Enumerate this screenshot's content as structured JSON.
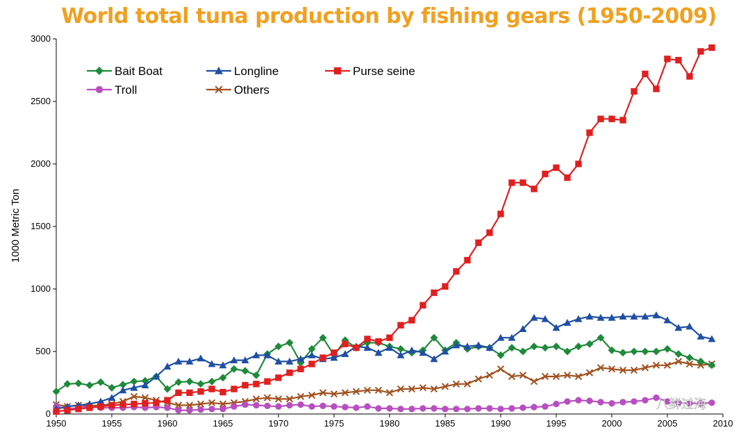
{
  "title": "World total tuna production by fishing gears (1950-2009)",
  "watermark": "八鲜过海",
  "chart_data": {
    "type": "line",
    "title": "World total tuna production by fishing gears (1950-2009)",
    "xlabel": "",
    "ylabel": "1000 Metric Ton",
    "xlim": [
      1950,
      2010
    ],
    "ylim": [
      0,
      3000
    ],
    "xticks": [
      1950,
      1955,
      1960,
      1965,
      1970,
      1975,
      1980,
      1985,
      1990,
      1995,
      2000,
      2005,
      2010
    ],
    "yticks": [
      0,
      500,
      1000,
      1500,
      2000,
      2500,
      3000
    ],
    "legend_position": "top-left",
    "x": [
      1950,
      1951,
      1952,
      1953,
      1954,
      1955,
      1956,
      1957,
      1958,
      1959,
      1960,
      1961,
      1962,
      1963,
      1964,
      1965,
      1966,
      1967,
      1968,
      1969,
      1970,
      1971,
      1972,
      1973,
      1974,
      1975,
      1976,
      1977,
      1978,
      1979,
      1980,
      1981,
      1982,
      1983,
      1984,
      1985,
      1986,
      1987,
      1988,
      1989,
      1990,
      1991,
      1992,
      1993,
      1994,
      1995,
      1996,
      1997,
      1998,
      1999,
      2000,
      2001,
      2002,
      2003,
      2004,
      2005,
      2006,
      2007,
      2008,
      2009
    ],
    "series": [
      {
        "name": "Bait Boat",
        "color": "#1e8a3a",
        "marker": "diamond",
        "values": [
          180,
          240,
          245,
          230,
          255,
          210,
          235,
          260,
          265,
          300,
          200,
          255,
          260,
          240,
          260,
          290,
          360,
          345,
          310,
          480,
          540,
          570,
          410,
          520,
          610,
          470,
          590,
          530,
          570,
          570,
          540,
          520,
          490,
          510,
          610,
          510,
          570,
          520,
          540,
          530,
          470,
          530,
          500,
          540,
          530,
          540,
          500,
          540,
          560,
          610,
          510,
          490,
          500,
          500,
          500,
          520,
          480,
          450,
          420,
          390
        ]
      },
      {
        "name": "Longline",
        "color": "#1f4fa3",
        "marker": "triangle",
        "values": [
          40,
          60,
          70,
          80,
          100,
          130,
          190,
          210,
          230,
          300,
          380,
          420,
          420,
          445,
          400,
          390,
          430,
          430,
          470,
          470,
          420,
          420,
          440,
          470,
          440,
          450,
          480,
          540,
          530,
          490,
          530,
          470,
          510,
          490,
          440,
          500,
          550,
          540,
          550,
          530,
          610,
          610,
          680,
          770,
          760,
          690,
          730,
          760,
          780,
          770,
          770,
          780,
          780,
          780,
          790,
          750,
          690,
          700,
          620,
          600
        ]
      },
      {
        "name": "Purse seine",
        "color": "#e02020",
        "marker": "square",
        "values": [
          20,
          30,
          40,
          50,
          60,
          70,
          75,
          80,
          85,
          90,
          110,
          170,
          170,
          180,
          200,
          175,
          200,
          230,
          240,
          260,
          290,
          330,
          360,
          400,
          450,
          490,
          560,
          530,
          600,
          580,
          610,
          710,
          750,
          870,
          970,
          1020,
          1140,
          1230,
          1370,
          1450,
          1600,
          1850,
          1850,
          1800,
          1920,
          1970,
          1890,
          2000,
          2250,
          2360,
          2360,
          2350,
          2580,
          2720,
          2600,
          2840,
          2830,
          2700,
          2900,
          2930
        ]
      },
      {
        "name": "Troll",
        "color": "#b84fc0",
        "marker": "circle",
        "values": [
          60,
          40,
          50,
          60,
          50,
          50,
          50,
          55,
          50,
          55,
          50,
          30,
          30,
          35,
          40,
          40,
          60,
          75,
          70,
          65,
          60,
          70,
          75,
          60,
          65,
          60,
          55,
          50,
          60,
          45,
          45,
          40,
          40,
          45,
          45,
          40,
          40,
          40,
          45,
          45,
          40,
          45,
          50,
          55,
          60,
          80,
          100,
          110,
          105,
          95,
          85,
          95,
          100,
          110,
          130,
          100,
          90,
          85,
          85,
          90
        ]
      },
      {
        "name": "Others",
        "color": "#a0501f",
        "marker": "x",
        "values": [
          75,
          60,
          70,
          65,
          70,
          80,
          100,
          140,
          130,
          110,
          90,
          70,
          70,
          80,
          90,
          80,
          90,
          100,
          120,
          130,
          120,
          120,
          140,
          150,
          170,
          160,
          170,
          180,
          190,
          190,
          170,
          200,
          200,
          210,
          200,
          220,
          240,
          240,
          280,
          310,
          360,
          300,
          310,
          260,
          300,
          300,
          310,
          300,
          330,
          370,
          360,
          350,
          350,
          370,
          390,
          390,
          420,
          400,
          390,
          400
        ]
      }
    ]
  }
}
